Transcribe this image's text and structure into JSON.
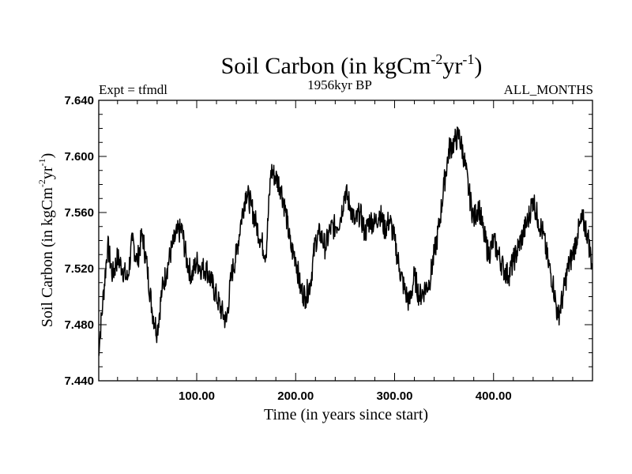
{
  "chart_data": {
    "type": "line",
    "title": {
      "prefix": "Soil Carbon (in kgCm",
      "exp1": "-2",
      "mid": "yr",
      "exp2": "-1",
      "suffix": ")"
    },
    "subtitle_left": "Expt = tfmdl",
    "subtitle_center": "1956kyr BP",
    "subtitle_right": "ALL_MONTHS",
    "xlabel": "Time (in years since start)",
    "ylabel": {
      "prefix": "Soil Carbon (in kgCm",
      "exp1": "-2",
      "mid": "yr",
      "exp2": "-1",
      "suffix": ")"
    },
    "xlim": [
      1,
      500
    ],
    "ylim": [
      7.44,
      7.64
    ],
    "xticks": [
      100,
      200,
      300,
      400
    ],
    "xtick_labels": [
      "100.00",
      "200.00",
      "300.00",
      "400.00"
    ],
    "yticks": [
      7.44,
      7.48,
      7.52,
      7.56,
      7.6,
      7.64
    ],
    "ytick_labels": [
      "7.440",
      "7.480",
      "7.520",
      "7.560",
      "7.600",
      "7.640"
    ],
    "series": [
      {
        "name": "Soil Carbon",
        "color": "#000000",
        "x": [
          0,
          5,
          10,
          15,
          20,
          25,
          30,
          35,
          40,
          45,
          50,
          55,
          60,
          65,
          70,
          75,
          80,
          85,
          90,
          95,
          100,
          105,
          110,
          115,
          120,
          125,
          130,
          135,
          140,
          145,
          150,
          155,
          160,
          165,
          170,
          175,
          180,
          185,
          190,
          195,
          200,
          205,
          210,
          215,
          220,
          225,
          230,
          235,
          240,
          245,
          250,
          255,
          260,
          265,
          270,
          275,
          280,
          285,
          290,
          295,
          300,
          305,
          310,
          315,
          320,
          325,
          330,
          335,
          340,
          345,
          350,
          355,
          360,
          365,
          370,
          375,
          380,
          385,
          390,
          395,
          400,
          405,
          410,
          415,
          420,
          425,
          430,
          435,
          440,
          445,
          450,
          455,
          460,
          465,
          470,
          475,
          480,
          485,
          490,
          495,
          500
        ],
        "values": [
          7.455,
          7.495,
          7.537,
          7.515,
          7.528,
          7.52,
          7.512,
          7.54,
          7.525,
          7.545,
          7.52,
          7.49,
          7.475,
          7.505,
          7.52,
          7.535,
          7.545,
          7.548,
          7.525,
          7.515,
          7.525,
          7.52,
          7.52,
          7.51,
          7.5,
          7.49,
          7.482,
          7.515,
          7.53,
          7.555,
          7.575,
          7.565,
          7.552,
          7.54,
          7.53,
          7.59,
          7.585,
          7.578,
          7.56,
          7.535,
          7.528,
          7.505,
          7.5,
          7.51,
          7.54,
          7.545,
          7.535,
          7.548,
          7.55,
          7.555,
          7.575,
          7.565,
          7.552,
          7.56,
          7.545,
          7.555,
          7.552,
          7.56,
          7.548,
          7.555,
          7.54,
          7.52,
          7.505,
          7.495,
          7.515,
          7.5,
          7.505,
          7.51,
          7.53,
          7.55,
          7.58,
          7.605,
          7.61,
          7.615,
          7.6,
          7.575,
          7.555,
          7.565,
          7.545,
          7.53,
          7.54,
          7.53,
          7.52,
          7.515,
          7.525,
          7.535,
          7.545,
          7.555,
          7.57,
          7.555,
          7.545,
          7.525,
          7.51,
          7.485,
          7.5,
          7.52,
          7.53,
          7.545,
          7.555,
          7.545,
          7.52
        ]
      }
    ]
  }
}
